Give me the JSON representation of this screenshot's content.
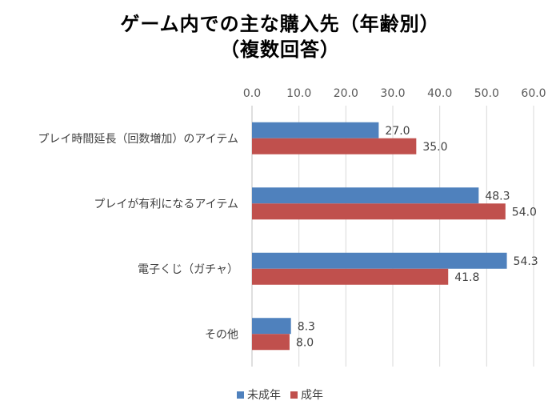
{
  "chart_data": {
    "type": "bar",
    "orientation": "horizontal",
    "title_lines": [
      "ゲーム内での主な購入先（年齢別）",
      "（複数回答）"
    ],
    "categories": [
      "プレイ時間延長（回数増加）のアイテム",
      "プレイが有利になるアイテム",
      "電子くじ（ガチャ）",
      "その他"
    ],
    "series": [
      {
        "name": "未成年",
        "color": "#4F81BD",
        "values": [
          27.0,
          48.3,
          54.3,
          8.3
        ]
      },
      {
        "name": "成年",
        "color": "#C0504D",
        "values": [
          35.0,
          54.0,
          41.8,
          8.0
        ]
      }
    ],
    "xlim": [
      0,
      60
    ],
    "xticks": [
      0,
      10,
      20,
      30,
      40,
      50,
      60
    ],
    "tick_labels": [
      "0.0",
      "10.0",
      "20.0",
      "30.0",
      "40.0",
      "50.0",
      "60.0"
    ],
    "data_labels": [
      [
        "27.0",
        "48.3",
        "54.3",
        "8.3"
      ],
      [
        "35.0",
        "54.0",
        "41.8",
        "8.0"
      ]
    ],
    "axis_position": "top",
    "gridlines": true,
    "legend_position": "bottom"
  }
}
